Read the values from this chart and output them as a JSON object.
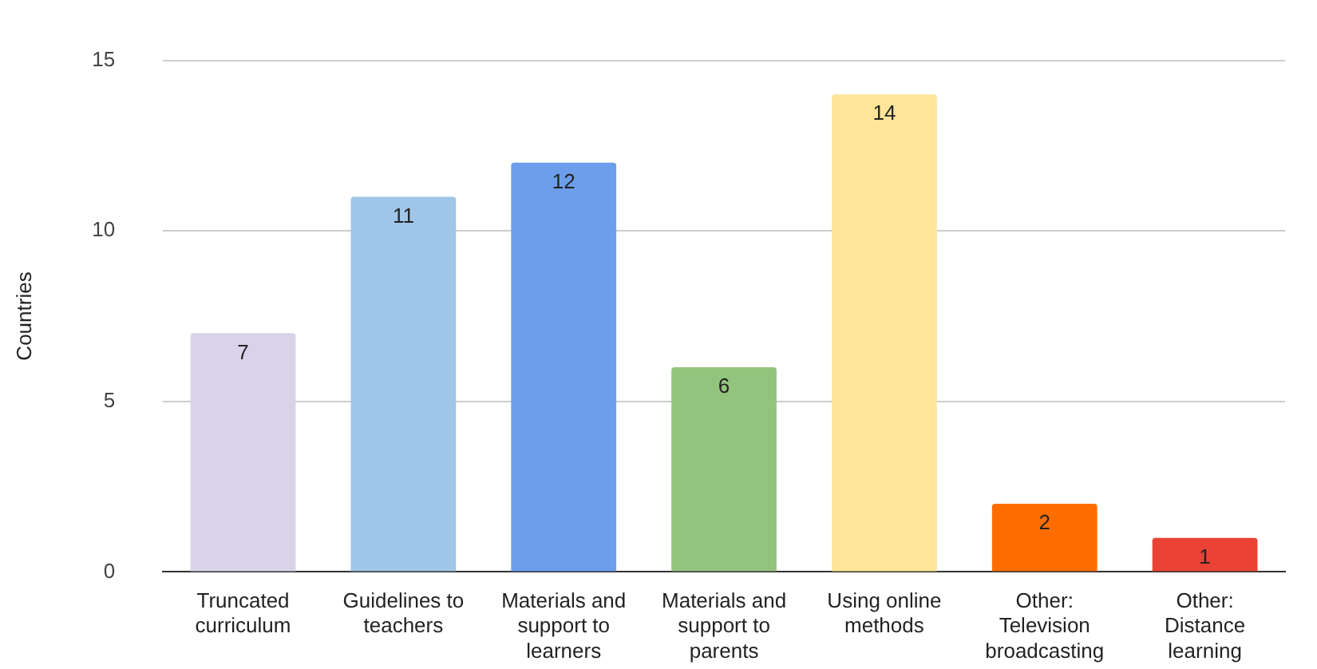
{
  "chart_data": {
    "type": "bar",
    "ylabel": "Countries",
    "categories": [
      "Truncated curriculum",
      "Guidelines to teachers",
      "Materials and support to learners",
      "Materials and support to parents",
      "Using online methods",
      "Other: Television broadcasting",
      "Other: Distance learning"
    ],
    "values": [
      7,
      11,
      12,
      6,
      14,
      2,
      1
    ],
    "colors": [
      "#d9d2e9",
      "#9fc5e8",
      "#6d9eeb",
      "#93c47d",
      "#ffe599",
      "#ff6d01",
      "#ea4335"
    ],
    "ylim": [
      0,
      15
    ],
    "yticks": [
      0,
      5,
      10,
      15
    ],
    "grid": "y",
    "data_labels": true,
    "legend": false
  }
}
